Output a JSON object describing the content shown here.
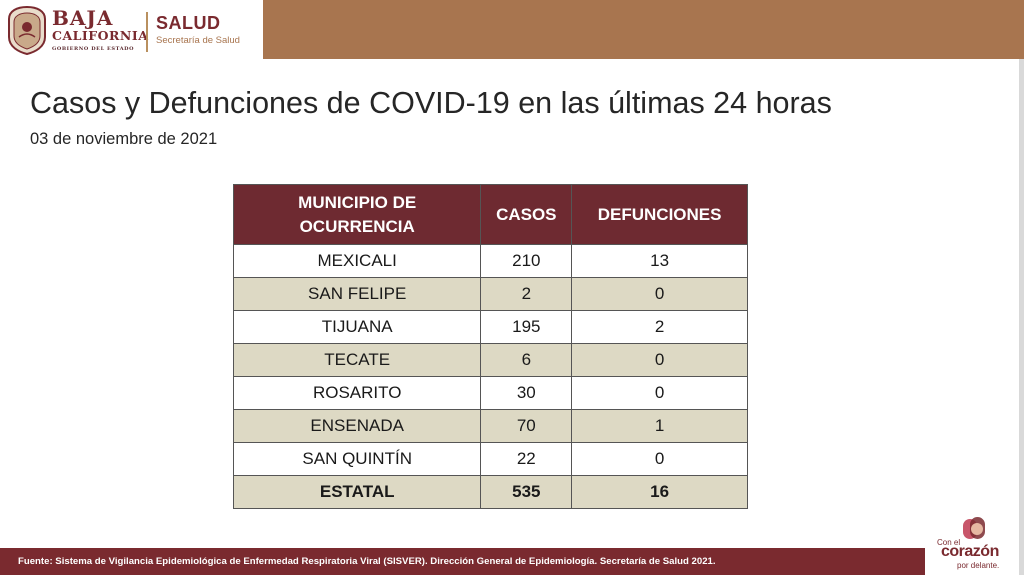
{
  "header": {
    "logo_line1": "BAJA",
    "logo_line2": "CALIFORNIA",
    "logo_line3": "GOBIERNO DEL ESTADO",
    "salud": "SALUD",
    "secretaria": "Secretaría de Salud"
  },
  "title": "Casos y Defunciones de COVID-19 en las últimas 24 horas",
  "date": "03 de noviembre de 2021",
  "table": {
    "headers": {
      "municipio_line1": "MUNICIPIO DE",
      "municipio_line2": "OCURRENCIA",
      "casos": "CASOS",
      "defunciones": "DEFUNCIONES"
    },
    "rows": [
      {
        "municipio": "MEXICALI",
        "casos": "210",
        "defunciones": "13"
      },
      {
        "municipio": "SAN FELIPE",
        "casos": "2",
        "defunciones": "0"
      },
      {
        "municipio": "TIJUANA",
        "casos": "195",
        "defunciones": "2"
      },
      {
        "municipio": "TECATE",
        "casos": "6",
        "defunciones": "0"
      },
      {
        "municipio": "ROSARITO",
        "casos": "30",
        "defunciones": "0"
      },
      {
        "municipio": "ENSENADA",
        "casos": "70",
        "defunciones": "1"
      },
      {
        "municipio": "SAN QUINTÍN",
        "casos": "22",
        "defunciones": "0"
      }
    ],
    "total": {
      "municipio": "ESTATAL",
      "casos": "535",
      "defunciones": "16"
    }
  },
  "footer": "Fuente: Sistema de Vigilancia Epidemiológica de Enfermedad Respiratoria Viral (SISVER). Dirección General de Epidemiología. Secretaría de Salud 2021.",
  "corazon_logo": {
    "line1": "Con el",
    "line2": "corazón",
    "line3": "por delante."
  },
  "colors": {
    "brand_maroon": "#6e2a31",
    "brand_gold": "#a8754f",
    "alt_row": "#ddd9c4"
  }
}
